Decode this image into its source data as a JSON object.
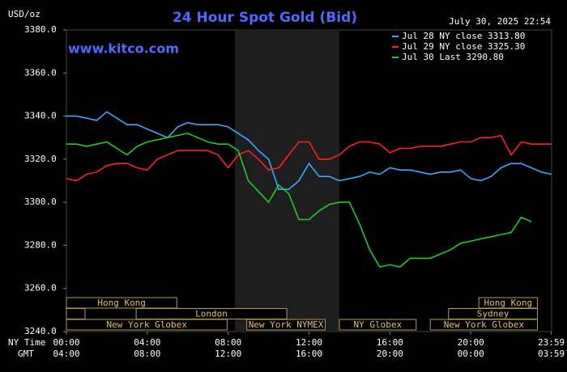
{
  "chart_data": {
    "type": "line",
    "title": "24 Hour Spot Gold (Bid)",
    "y_unit_label": "USD/oz",
    "timestamp": "July 30, 2025 22:54",
    "watermark": "www.kitco.com",
    "x_row_label_1": "NY Time",
    "x_row_label_2": "GMT",
    "xlim": [
      0,
      24
    ],
    "ylim": [
      3240,
      3380
    ],
    "yticks": [
      {
        "value": 3240,
        "label": "3240.0"
      },
      {
        "value": 3260,
        "label": "3260.0"
      },
      {
        "value": 3280,
        "label": "3280.0"
      },
      {
        "value": 3300,
        "label": "3300.0"
      },
      {
        "value": 3320,
        "label": "3320.0"
      },
      {
        "value": 3340,
        "label": "3340.0"
      },
      {
        "value": 3360,
        "label": "3360.0"
      },
      {
        "value": 3380,
        "label": "3380.0"
      }
    ],
    "xticks": [
      {
        "value": 0,
        "label": "00:00"
      },
      {
        "value": 4,
        "label": "04:00"
      },
      {
        "value": 8,
        "label": "08:00"
      },
      {
        "value": 12,
        "label": "12:00"
      },
      {
        "value": 16,
        "label": "16:00"
      },
      {
        "value": 20,
        "label": "20:00"
      },
      {
        "value": 23.983,
        "label": "23:59"
      }
    ],
    "gmt_tick_labels": [
      "04:00",
      "08:00",
      "12:00",
      "16:00",
      "20:00",
      "00:00",
      "03:59"
    ],
    "shaded_region": [
      8.33,
      13.5
    ],
    "sessions": [
      {
        "name": "Hong Kong",
        "row": 0,
        "start": 0,
        "end": 5.46
      },
      {
        "name": "Hong Kong",
        "row": 0,
        "start": 20.4,
        "end": 23.3
      },
      {
        "name": null,
        "row": 1,
        "start": 0,
        "end": 0.92
      },
      {
        "name": "London",
        "row": 1,
        "start": 3.45,
        "end": 10.9
      },
      {
        "name": "Sydney",
        "row": 1,
        "start": 18.9,
        "end": 23.3
      },
      {
        "name": "New York Globex",
        "row": 2,
        "start": 0,
        "end": 7.95
      },
      {
        "name": "New York NYMEX",
        "row": 2,
        "start": 8.92,
        "end": 12.8
      },
      {
        "name": "NY Globex",
        "row": 2,
        "start": 13.5,
        "end": 17.3
      },
      {
        "name": "New York Globex",
        "row": 2,
        "start": 18.0,
        "end": 23.3
      }
    ],
    "x": [
      0,
      0.5,
      1,
      1.5,
      2,
      2.5,
      3,
      3.5,
      4,
      4.5,
      5,
      5.5,
      6,
      6.5,
      7,
      7.5,
      8,
      8.5,
      9,
      9.5,
      10,
      10.5,
      11,
      11.5,
      12,
      12.5,
      13,
      13.5,
      14,
      14.5,
      15,
      15.5,
      16,
      16.5,
      17,
      17.5,
      18,
      18.5,
      19,
      19.5,
      20,
      20.5,
      21,
      21.5,
      22,
      22.5,
      23,
      23.5,
      24
    ],
    "series": [
      {
        "name": "Jul 28 NY close 3313.80",
        "color": "#33aaff",
        "values": [
          3340,
          3340,
          3339,
          3338,
          3342,
          3339,
          3336,
          3336,
          3334,
          3332,
          3330,
          3335,
          3337,
          3336,
          3336,
          3336,
          3335,
          3332,
          3329,
          3324,
          3320,
          3306,
          3306,
          3310,
          3318,
          3312,
          3312,
          3310,
          3311,
          3312,
          3314,
          3313,
          3316,
          3315,
          3315,
          3314,
          3313,
          3314,
          3314,
          3315,
          3311,
          3310,
          3312,
          3316,
          3318,
          3318,
          3316,
          3314,
          3313
        ]
      },
      {
        "name": "Jul 29 NY close 3325.30",
        "color": "#ff2020",
        "values": [
          3311,
          3310,
          3313,
          3314,
          3317,
          3318,
          3318,
          3316,
          3315,
          3320,
          3322,
          3324,
          3324,
          3324,
          3324,
          3322,
          3316,
          3322,
          3324,
          3320,
          3315,
          3316,
          3322,
          3328,
          3328,
          3320,
          3320,
          3322,
          3326,
          3328,
          3328,
          3327,
          3323,
          3325,
          3325,
          3326,
          3326,
          3326,
          3327,
          3328,
          3328,
          3330,
          3330,
          3331,
          3322,
          3328,
          3327,
          3327,
          3327
        ]
      },
      {
        "name": "Jul 30 Last 3290.80",
        "color": "#22cc22",
        "values": [
          3327,
          3327,
          3326,
          3327,
          3328,
          3325,
          3322,
          3326,
          3328,
          3329,
          3330,
          3331,
          3332,
          3330,
          3328,
          3327,
          3327,
          3324,
          3310,
          3305,
          3300,
          3308,
          3304,
          3292,
          3292,
          3296,
          3299,
          3300,
          3300,
          3290,
          3278,
          3270,
          3271,
          3270,
          3274,
          3274,
          3274,
          3276,
          3278,
          3281,
          3282,
          3283,
          3284,
          3285,
          3286,
          3293,
          3291,
          null,
          null
        ]
      }
    ]
  }
}
